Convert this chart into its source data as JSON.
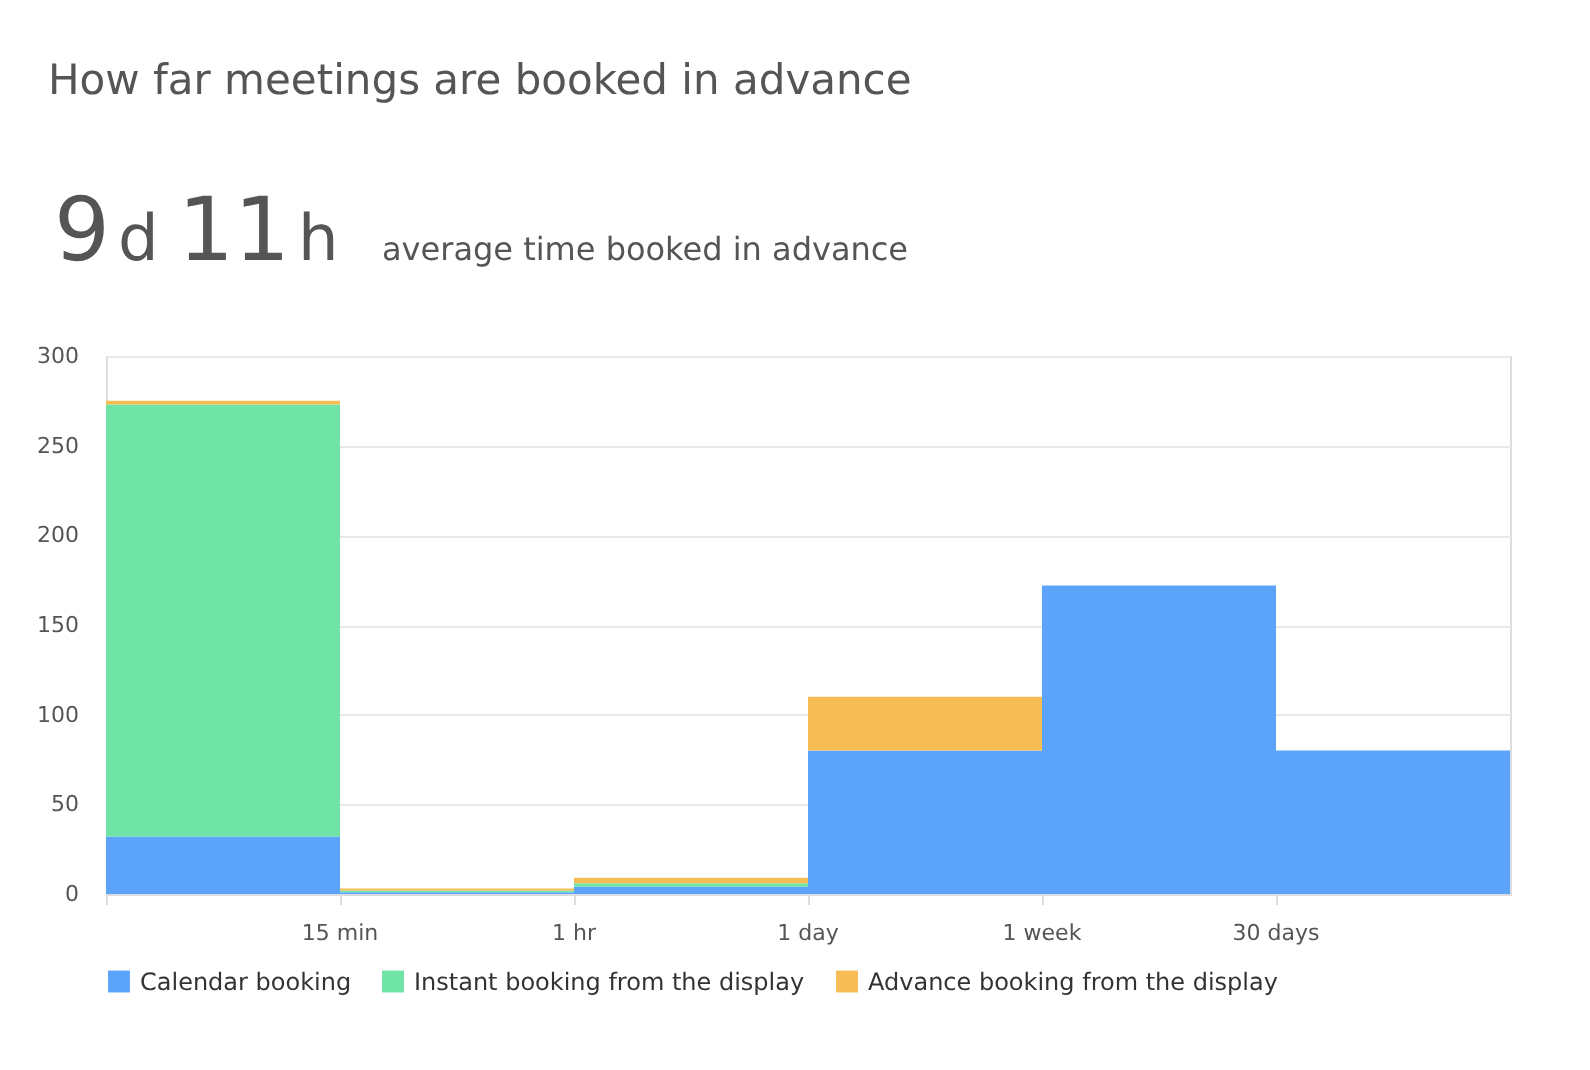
{
  "chart_data": {
    "type": "bar",
    "title": "How far meetings are booked in advance",
    "annotations": [
      "9",
      "d",
      "11",
      "h",
      "average time booked in advance",
      "15 min",
      "1 hr",
      "1 day",
      "1 week",
      "30 days"
    ],
    "categories": [
      null,
      null,
      null,
      null,
      null,
      null
    ],
    "stacked": true,
    "series": [
      {
        "name": "Calendar booking",
        "color": "#539ffa",
        "values": [
          32,
          1,
          4,
          80,
          172,
          80
        ]
      },
      {
        "name": "Instant booking from the display",
        "color": "#67e3a1",
        "values": [
          241,
          1,
          2,
          0,
          0,
          0
        ]
      },
      {
        "name": "Advance booking from the display",
        "color": "#f5b94b",
        "values": [
          2,
          1,
          3,
          30,
          0,
          0
        ]
      }
    ],
    "ylim": [
      0,
      300
    ],
    "yticks": [
      0,
      50,
      100,
      150,
      200,
      250,
      300
    ],
    "grid": "y",
    "legend": "bottom"
  }
}
